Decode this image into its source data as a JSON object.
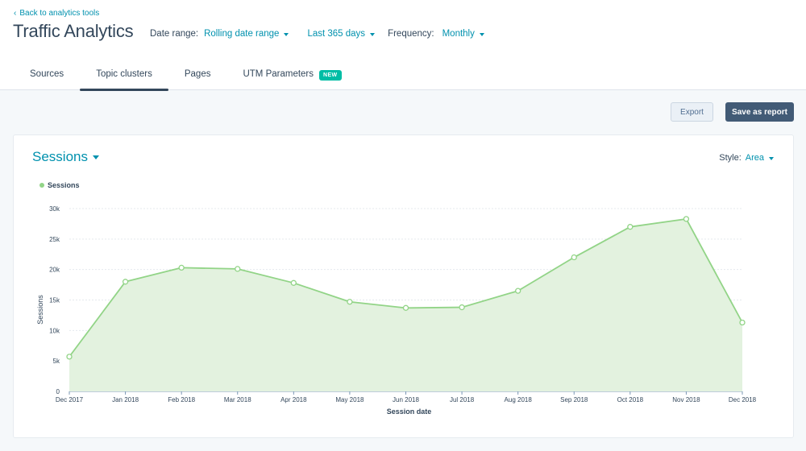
{
  "header": {
    "back_link": "Back to analytics tools",
    "title": "Traffic Analytics"
  },
  "filters": {
    "date_range_label": "Date range:",
    "date_range_value": "Rolling date range",
    "period_value": "Last 365 days",
    "frequency_label": "Frequency:",
    "frequency_value": "Monthly"
  },
  "tabs": [
    {
      "label": "Sources",
      "active": false
    },
    {
      "label": "Topic clusters",
      "active": true
    },
    {
      "label": "Pages",
      "active": false
    },
    {
      "label": "UTM Parameters",
      "active": false,
      "badge": "NEW"
    }
  ],
  "actions": {
    "export_label": "Export",
    "save_label": "Save as report"
  },
  "card": {
    "metric_title": "Sessions",
    "style_label": "Style:",
    "style_value": "Area"
  },
  "colors": {
    "accent": "#0091ae",
    "series_line": "#92d487",
    "series_fill": "#e3f2df",
    "badge": "#00bda5",
    "primary_button": "#425b76"
  },
  "chart_data": {
    "type": "area",
    "categories": [
      "Dec 2017",
      "Jan 2018",
      "Feb 2018",
      "Mar 2018",
      "Apr 2018",
      "May 2018",
      "Jun 2018",
      "Jul 2018",
      "Aug 2018",
      "Sep 2018",
      "Oct 2018",
      "Nov 2018",
      "Dec 2018"
    ],
    "series": [
      {
        "name": "Sessions",
        "values": [
          5700,
          18000,
          20300,
          20100,
          17800,
          14700,
          13700,
          13800,
          16500,
          22000,
          27000,
          28300,
          11300
        ]
      }
    ],
    "ylim": [
      0,
      30000
    ],
    "yticks": [
      0,
      5000,
      10000,
      15000,
      20000,
      25000,
      30000
    ],
    "ytick_labels": [
      "0",
      "5k",
      "10k",
      "15k",
      "20k",
      "25k",
      "30k"
    ],
    "xlabel": "Session date",
    "ylabel": "Sessions",
    "legend_position": "top-left",
    "grid": true
  }
}
